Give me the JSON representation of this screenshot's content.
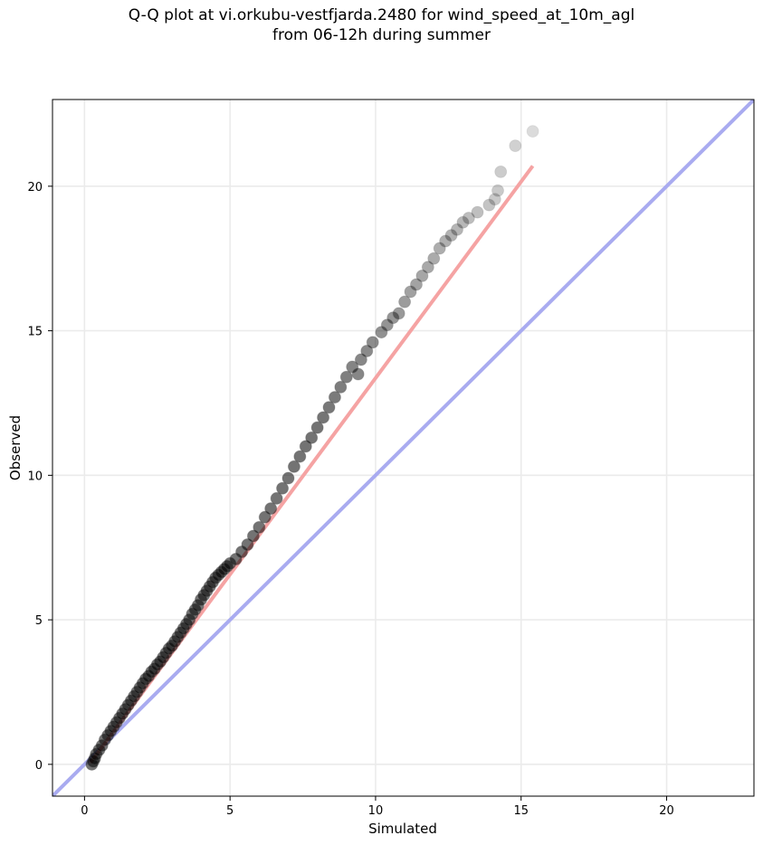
{
  "chart_data": {
    "type": "scatter",
    "title_line1": "Q-Q plot at vi.orkubu-vestfjarda.2480 for wind_speed_at_10m_agl",
    "title_line2": "from 06-12h during summer",
    "xlabel": "Simulated",
    "ylabel": "Observed",
    "xlim": [
      -1.1,
      23.0
    ],
    "ylim": [
      -1.1,
      23.0
    ],
    "xticks": [
      0,
      5,
      10,
      15,
      20
    ],
    "yticks": [
      0,
      5,
      10,
      15,
      20
    ],
    "grid": true,
    "reference_line": {
      "name": "1:1",
      "color": "#a9abf0",
      "x": [
        -1.1,
        23.0
      ],
      "y": [
        -1.1,
        23.0
      ]
    },
    "fit_line": {
      "color": "#f5a3a3",
      "x": [
        0.2,
        15.4
      ],
      "y": [
        0.05,
        20.7
      ]
    },
    "point_color": "#000000",
    "points_x": [
      0.25,
      0.3,
      0.35,
      0.4,
      0.5,
      0.6,
      0.7,
      0.8,
      0.9,
      1.0,
      1.1,
      1.2,
      1.3,
      1.4,
      1.5,
      1.6,
      1.7,
      1.8,
      1.9,
      2.0,
      2.1,
      2.2,
      2.3,
      2.4,
      2.5,
      2.6,
      2.7,
      2.8,
      2.9,
      3.0,
      3.1,
      3.2,
      3.3,
      3.4,
      3.5,
      3.6,
      3.7,
      3.8,
      3.9,
      4.0,
      4.1,
      4.2,
      4.3,
      4.4,
      4.5,
      4.6,
      4.7,
      4.8,
      4.9,
      5.0,
      5.2,
      5.4,
      5.6,
      5.8,
      6.0,
      6.2,
      6.4,
      6.6,
      6.8,
      7.0,
      7.2,
      7.4,
      7.6,
      7.8,
      8.0,
      8.2,
      8.4,
      8.6,
      8.8,
      9.0,
      9.2,
      9.4,
      9.5,
      9.7,
      9.9,
      10.2,
      10.4,
      10.6,
      10.8,
      11.0,
      11.2,
      11.4,
      11.6,
      11.8,
      12.0,
      12.2,
      12.4,
      12.6,
      12.8,
      13.0,
      13.2,
      13.5,
      13.9,
      14.1,
      14.2,
      14.3,
      14.8,
      15.4
    ],
    "points_y": [
      0.0,
      0.1,
      0.2,
      0.35,
      0.5,
      0.65,
      0.85,
      1.0,
      1.15,
      1.3,
      1.45,
      1.6,
      1.75,
      1.9,
      2.05,
      2.2,
      2.35,
      2.5,
      2.65,
      2.8,
      2.95,
      3.05,
      3.2,
      3.3,
      3.45,
      3.55,
      3.7,
      3.85,
      4.0,
      4.1,
      4.25,
      4.4,
      4.55,
      4.7,
      4.85,
      5.0,
      5.2,
      5.35,
      5.5,
      5.7,
      5.85,
      6.0,
      6.15,
      6.3,
      6.45,
      6.55,
      6.65,
      6.75,
      6.85,
      6.95,
      7.1,
      7.35,
      7.6,
      7.9,
      8.2,
      8.55,
      8.85,
      9.2,
      9.55,
      9.9,
      10.3,
      10.65,
      11.0,
      11.3,
      11.65,
      12.0,
      12.35,
      12.7,
      13.05,
      13.4,
      13.75,
      13.5,
      14.0,
      14.3,
      14.6,
      14.95,
      15.2,
      15.45,
      15.6,
      16.0,
      16.35,
      16.6,
      16.9,
      17.2,
      17.5,
      17.85,
      18.1,
      18.3,
      18.5,
      18.75,
      18.9,
      19.1,
      19.35,
      19.55,
      19.85,
      20.5,
      21.4,
      21.9
    ]
  }
}
